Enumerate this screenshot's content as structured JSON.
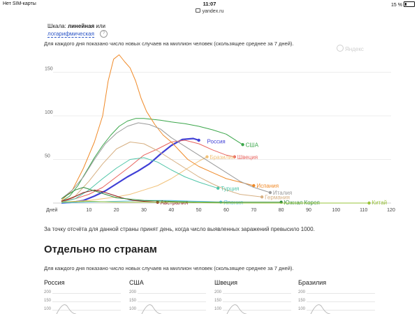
{
  "status_bar": {
    "carrier": "Нет SIM-карты",
    "time": "11:07",
    "battery": "15 %"
  },
  "browser": {
    "url": "yandex.ru"
  },
  "scale_toggle": {
    "label": "Шкала:",
    "linear": "линейная",
    "or": "или",
    "log": "логарифмическая",
    "info_icon": "?"
  },
  "chart_description": "Для каждого дня показано число новых случаев на миллион человек (скользящее среднее за 7 дней).",
  "watermark": "Яндекс",
  "chart_data": {
    "type": "line",
    "xlabel": "Дней",
    "xlim": [
      0,
      120
    ],
    "ylim": [
      0,
      180
    ],
    "x_ticks": [
      "Дней",
      "10",
      "20",
      "30",
      "40",
      "50",
      "60",
      "70",
      "80",
      "90",
      "100",
      "110",
      "120"
    ],
    "y_ticks": [
      "50",
      "100",
      "150"
    ],
    "grid": "horizontal",
    "series": [
      {
        "name": "Россия",
        "color": "#3f3fd6",
        "label_at": [
          52,
          71
        ],
        "x": [
          0,
          4,
          8,
          12,
          16,
          20,
          24,
          28,
          32,
          36,
          40,
          44,
          48,
          50
        ],
        "y": [
          0,
          1,
          3,
          8,
          14,
          22,
          30,
          37,
          45,
          56,
          66,
          73,
          74,
          72
        ]
      },
      {
        "name": "США",
        "color": "#3aa64a",
        "label_at": [
          66,
          67
        ],
        "x": [
          0,
          3,
          6,
          9,
          12,
          15,
          18,
          21,
          24,
          27,
          30,
          33,
          36,
          40,
          45,
          50,
          55,
          60,
          64,
          66
        ],
        "y": [
          2,
          8,
          20,
          36,
          52,
          66,
          78,
          88,
          94,
          97,
          97,
          96,
          95,
          93,
          91,
          88,
          84,
          79,
          71,
          67
        ]
      },
      {
        "name": "Швеция",
        "color": "#e8635e",
        "label_at": [
          63,
          53
        ],
        "x": [
          0,
          5,
          10,
          15,
          20,
          25,
          30,
          35,
          40,
          45,
          50,
          55,
          60,
          63
        ],
        "y": [
          2,
          5,
          10,
          18,
          30,
          42,
          55,
          62,
          70,
          72,
          68,
          61,
          55,
          53
        ]
      },
      {
        "name": "Бразилия",
        "color": "#f1c27a",
        "label_at": [
          53,
          53
        ],
        "x": [
          0,
          5,
          10,
          15,
          20,
          25,
          30,
          35,
          40,
          45,
          50,
          53
        ],
        "y": [
          1,
          2,
          3,
          5,
          7,
          10,
          15,
          20,
          28,
          38,
          48,
          53
        ]
      },
      {
        "name": "Испания",
        "color": "#f08a28",
        "label_at": [
          70,
          20
        ],
        "x": [
          0,
          4,
          8,
          12,
          15,
          17,
          19,
          21,
          23,
          25,
          27,
          29,
          31,
          34,
          37,
          40,
          43,
          46,
          50,
          55,
          60,
          65,
          70
        ],
        "y": [
          3,
          15,
          40,
          70,
          100,
          140,
          165,
          170,
          162,
          155,
          140,
          120,
          105,
          90,
          78,
          70,
          60,
          50,
          42,
          35,
          28,
          24,
          20
        ]
      },
      {
        "name": "Италия",
        "color": "#9a9a9a",
        "label_at": [
          76,
          12
        ],
        "x": [
          0,
          4,
          8,
          12,
          16,
          20,
          24,
          28,
          32,
          36,
          40,
          45,
          50,
          55,
          60,
          65,
          70,
          76
        ],
        "y": [
          5,
          15,
          30,
          50,
          68,
          80,
          88,
          92,
          90,
          85,
          75,
          65,
          55,
          45,
          35,
          25,
          18,
          12
        ]
      },
      {
        "name": "Германия",
        "color": "#d7b083",
        "label_at": [
          73,
          7
        ],
        "x": [
          0,
          5,
          10,
          15,
          20,
          25,
          30,
          35,
          40,
          45,
          50,
          55,
          60,
          65,
          73
        ],
        "y": [
          2,
          8,
          25,
          45,
          62,
          70,
          68,
          60,
          50,
          40,
          30,
          22,
          15,
          10,
          7
        ]
      },
      {
        "name": "Турция",
        "color": "#4fc5a8",
        "label_at": [
          57,
          17
        ],
        "x": [
          0,
          5,
          10,
          15,
          20,
          25,
          30,
          35,
          40,
          45,
          50,
          55,
          57
        ],
        "y": [
          1,
          5,
          15,
          28,
          40,
          50,
          52,
          47,
          38,
          30,
          24,
          19,
          17
        ]
      },
      {
        "name": "Япония",
        "color": "#64c6e8",
        "label_at": [
          58,
          1
        ],
        "x": [
          0,
          10,
          20,
          30,
          40,
          50,
          58
        ],
        "y": [
          0,
          1,
          2,
          3,
          3,
          2,
          1
        ]
      },
      {
        "name": "Австралия",
        "color": "#8b1a1a",
        "label_at": [
          35,
          1
        ],
        "x": [
          0,
          4,
          8,
          12,
          15,
          18,
          22,
          26,
          30,
          35
        ],
        "y": [
          2,
          6,
          12,
          15,
          13,
          10,
          6,
          3,
          2,
          1
        ]
      },
      {
        "name": "Южная Корея",
        "color": "#2e8b3a",
        "label_at": [
          80,
          1
        ],
        "x": [
          0,
          5,
          8,
          12,
          16,
          20,
          30,
          40,
          50,
          60,
          70,
          80
        ],
        "y": [
          5,
          15,
          18,
          14,
          10,
          6,
          3,
          2,
          1,
          1,
          1,
          1
        ]
      },
      {
        "name": "Китай",
        "color": "#9ac43a",
        "label_at": [
          112,
          1
        ],
        "x": [
          0,
          10,
          20,
          40,
          60,
          80,
          100,
          112
        ],
        "y": [
          1,
          2,
          1,
          1,
          0,
          0,
          0,
          0
        ]
      }
    ]
  },
  "note": "За точку отсчёта для данной страны принят день, когда число выявленных заражений превысило 1000.",
  "section_title": "Отдельно по странам",
  "section_description": "Для каждого дня показано число новых случаев на миллион человек (скользящее среднее за 7 дней).",
  "mini_charts": [
    {
      "title": "Россия",
      "ticks": [
        "200",
        "150",
        "100"
      ]
    },
    {
      "title": "США",
      "ticks": [
        "200",
        "150",
        "100"
      ]
    },
    {
      "title": "Швеция",
      "ticks": [
        "200",
        "150",
        "100"
      ]
    },
    {
      "title": "Бразилия",
      "ticks": [
        "200",
        "150",
        "100"
      ]
    }
  ]
}
